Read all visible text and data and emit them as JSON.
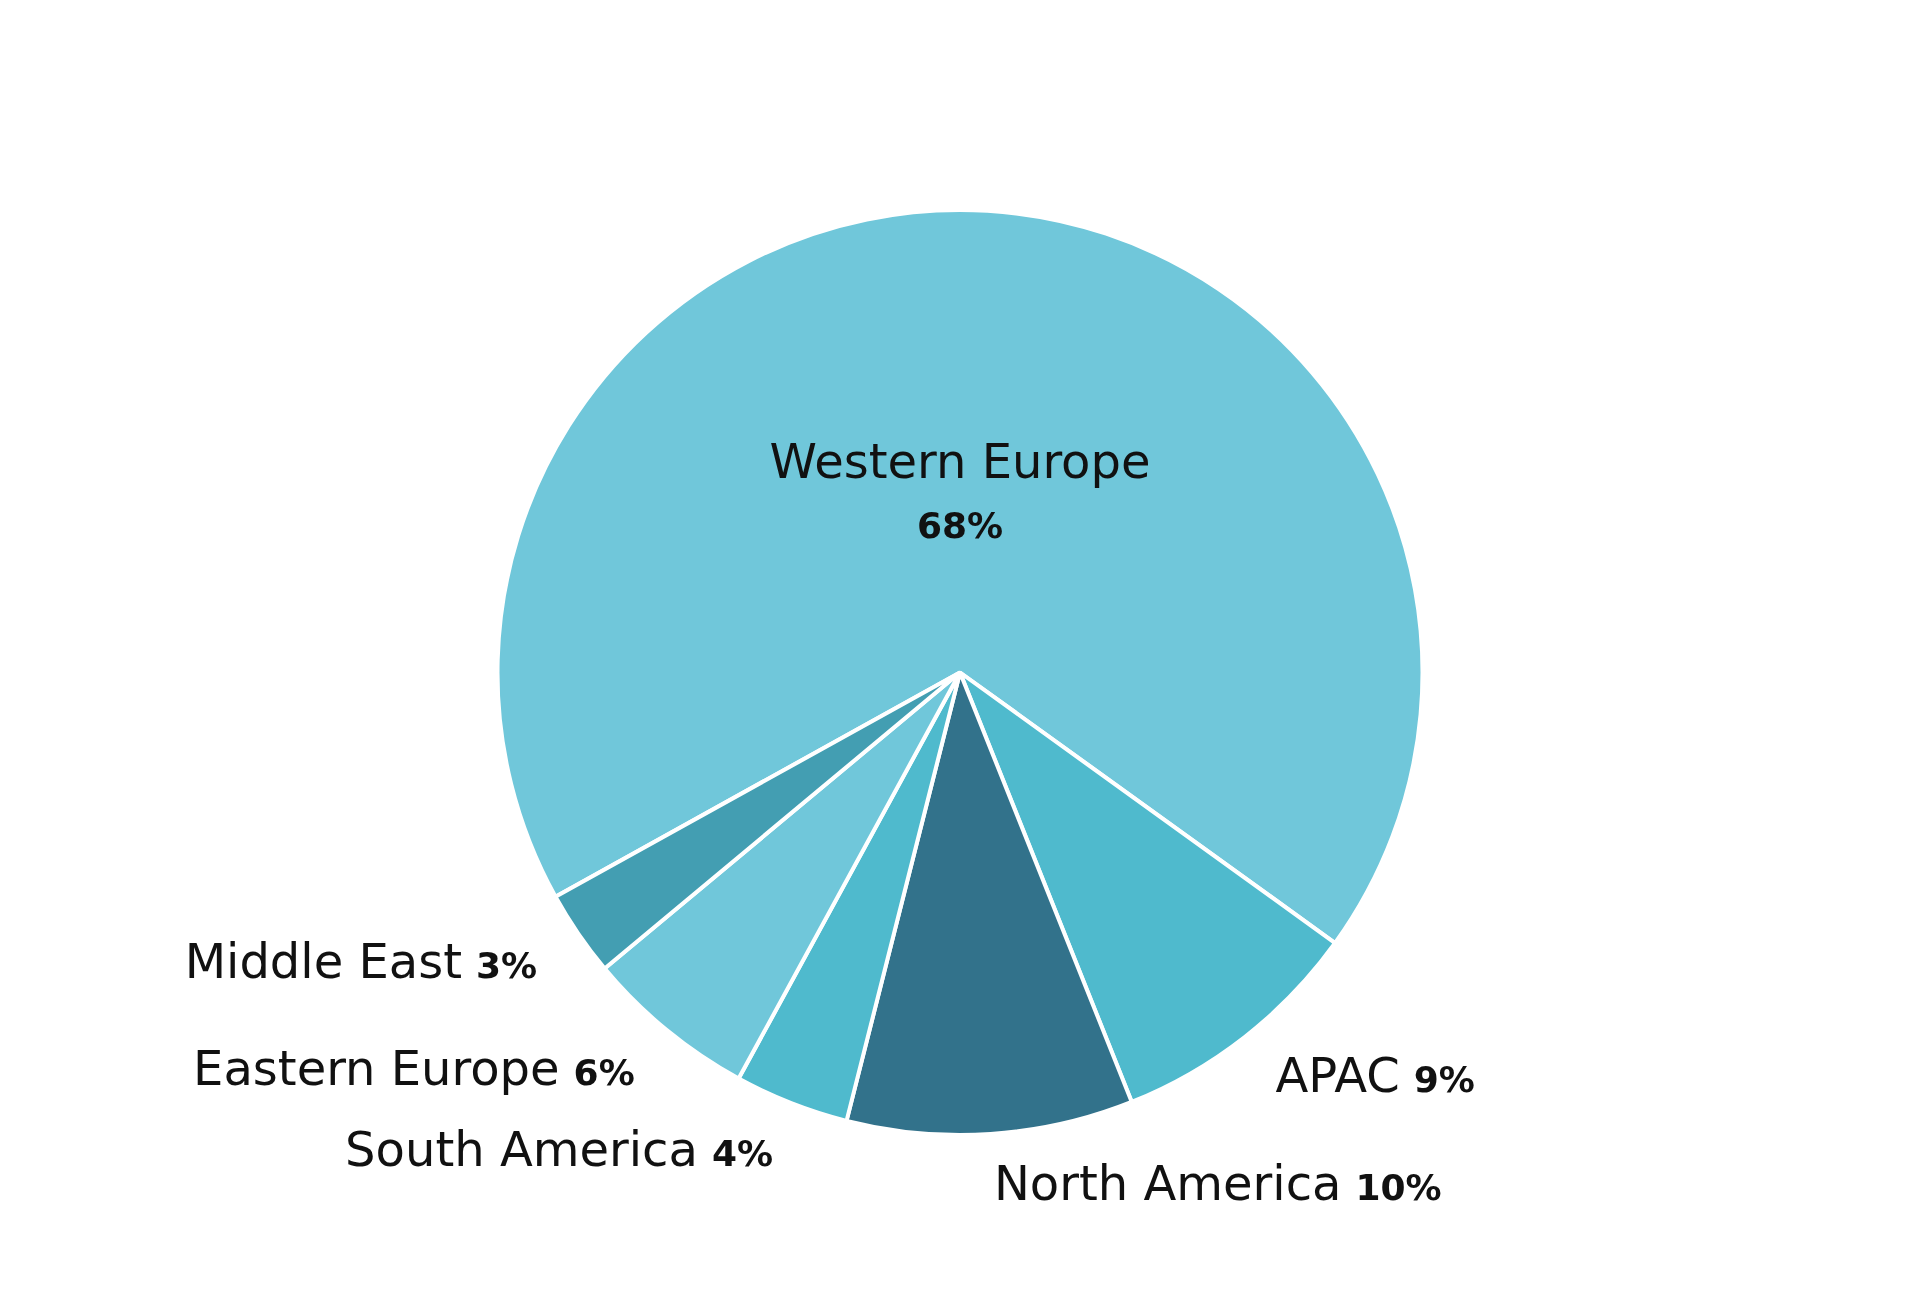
{
  "chart_data": {
    "type": "pie",
    "categories": [
      "Western Europe",
      "APAC",
      "North America",
      "South America",
      "Eastern Europe",
      "Middle East"
    ],
    "values": [
      68,
      9,
      10,
      4,
      6,
      3
    ],
    "value_labels": [
      "68%",
      "9%",
      "10%",
      "4%",
      "6%",
      "3%"
    ],
    "colors": [
      "#70c7da",
      "#4fbacd",
      "#32728b",
      "#4fbacd",
      "#70c7da",
      "#439eb2"
    ],
    "legend": false
  }
}
